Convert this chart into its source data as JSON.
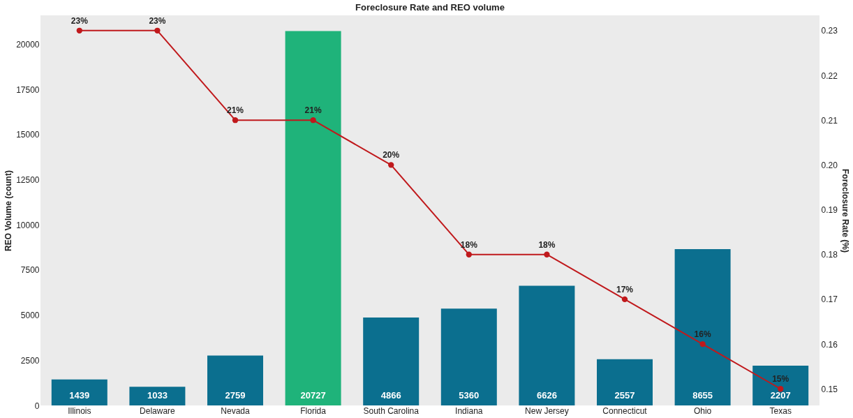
{
  "chart_data": {
    "type": "bar",
    "title": "Foreclosure Rate and REO volume",
    "ylabel": "REO Volume (count)",
    "y2label": "Foreclosure Rate (%)",
    "categories": [
      "Illinois",
      "Delaware",
      "Nevada",
      "Florida",
      "South Carolina",
      "Indiana",
      "New Jersey",
      "Connecticut",
      "Ohio",
      "Texas"
    ],
    "series": [
      {
        "colors": [
          "#0b6f8f",
          "#0b6f8f",
          "#0b6f8f",
          "#1fb37a",
          "#0b6f8f",
          "#0b6f8f",
          "#0b6f8f",
          "#0b6f8f",
          "#0b6f8f",
          "#0b6f8f"
        ],
        "values": [
          1439,
          1033,
          2759,
          20727,
          4866,
          5360,
          6626,
          2557,
          8655,
          2207
        ],
        "value_labels": [
          "1439",
          "1033",
          "2759",
          "20727",
          "4866",
          "5360",
          "6626",
          "2557",
          "8655",
          "2207"
        ]
      },
      {
        "type": "line",
        "axis": "y2",
        "color": "#c0191c",
        "marker": "circle",
        "values": [
          0.23,
          0.23,
          0.21,
          0.21,
          0.2,
          0.18,
          0.18,
          0.17,
          0.16,
          0.15
        ],
        "value_labels": [
          "23%",
          "23%",
          "21%",
          "21%",
          "20%",
          "18%",
          "18%",
          "17%",
          "16%",
          "15%"
        ]
      }
    ],
    "ylim": [
      0,
      21600
    ],
    "yticks": [
      0,
      2500,
      5000,
      7500,
      10000,
      12500,
      15000,
      17500,
      20000
    ],
    "y2lim": [
      0.1463,
      0.2334
    ],
    "y2ticks": [
      {
        "value": 0.15,
        "label": "0.15"
      },
      {
        "value": 0.16,
        "label": "0.16"
      },
      {
        "value": 0.17,
        "label": "0.17"
      },
      {
        "value": 0.18,
        "label": "0.18"
      },
      {
        "value": 0.19,
        "label": "0.19"
      },
      {
        "value": 0.2,
        "label": "0.20"
      },
      {
        "value": 0.21,
        "label": "0.21"
      },
      {
        "value": 0.22,
        "label": "0.22"
      },
      {
        "value": 0.23,
        "label": "0.23"
      }
    ],
    "grid": false
  }
}
